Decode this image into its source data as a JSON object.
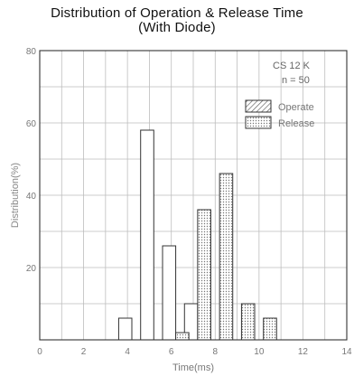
{
  "chart_data": {
    "type": "bar",
    "title": "Distribution of Operation & Release Time",
    "subtitle": "(With Diode)",
    "xlabel": "Time(ms)",
    "ylabel": "Distribution(%)",
    "xlim": [
      0,
      14
    ],
    "ylim": [
      0,
      80
    ],
    "x_ticks": [
      0,
      2,
      4,
      6,
      8,
      10,
      12,
      14
    ],
    "y_ticks": [
      20,
      40,
      60,
      80
    ],
    "grid": true,
    "bin_width": 0.6,
    "annotation": [
      "CS 12 K",
      "n = 50"
    ],
    "legend_position": "top-right",
    "series": [
      {
        "name": "Operate",
        "fill": "#f3f3f3",
        "bins": [
          {
            "x": 3.6,
            "value": 6
          },
          {
            "x": 4.6,
            "value": 58
          },
          {
            "x": 5.6,
            "value": 26
          },
          {
            "x": 6.6,
            "value": 10
          }
        ]
      },
      {
        "name": "Release",
        "fill": "#d9d9d9",
        "bins": [
          {
            "x": 6.2,
            "value": 2
          },
          {
            "x": 7.2,
            "value": 36
          },
          {
            "x": 8.2,
            "value": 46
          },
          {
            "x": 9.2,
            "value": 10
          },
          {
            "x": 10.2,
            "value": 6
          }
        ]
      }
    ]
  }
}
